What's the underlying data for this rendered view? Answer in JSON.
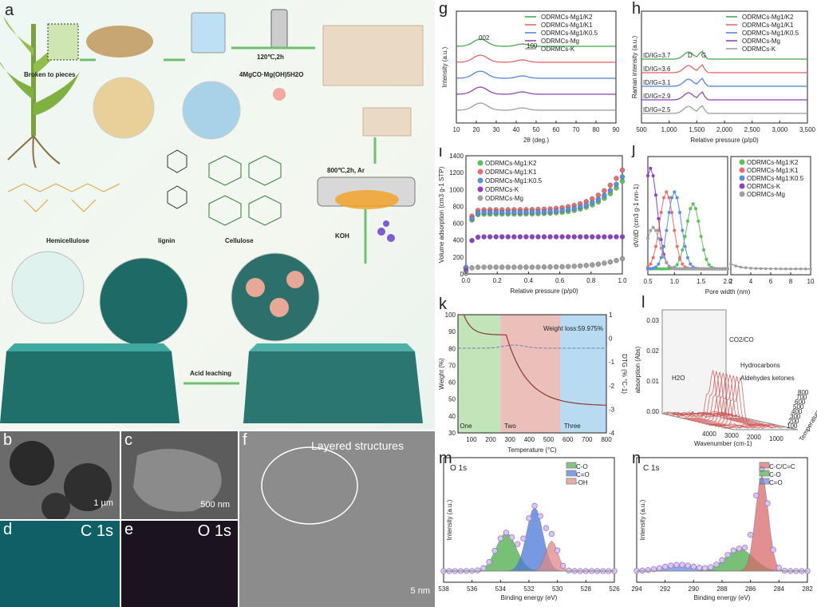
{
  "panels": {
    "a": "a",
    "b": "b",
    "c": "c",
    "d": "d",
    "e": "e",
    "f": "f",
    "g": "g",
    "h": "h",
    "i": "i",
    "j": "j",
    "k": "k",
    "l": "l",
    "m": "m",
    "n": "n"
  },
  "schematic": {
    "broken": "Broken to pieces",
    "hydro_temp": "120℃,2h",
    "hydro_reagent": "4MgCO·Mg(OH)5H2O",
    "pyrolysis": "800℃,2h, Ar",
    "koh": "KOH",
    "acid": "Acid leaching",
    "hemicellulose": "Hemicellulose",
    "lignin": "lignin",
    "cellulose": "Cellulose"
  },
  "micro": {
    "b_scale": "1 µm",
    "c_scale": "500 nm",
    "d_label": "C 1s",
    "e_label": "O 1s",
    "f_label": "Layered structures",
    "f_scale": "5 nm"
  },
  "chart_g": {
    "type": "line",
    "xlabel": "2θ (deg.)",
    "ylabel": "Intensity (a.u.)",
    "xlim": [
      10,
      90
    ],
    "xticks": [
      "10",
      "20",
      "30",
      "40",
      "50",
      "60",
      "70",
      "80",
      "90"
    ],
    "annotations": [
      "002",
      "100"
    ],
    "series": [
      {
        "name": "ODRMCs-Mg1/K2",
        "color": "#3aa64a",
        "offset": 4
      },
      {
        "name": "ODRMCs-Mg1/K1",
        "color": "#e06060",
        "offset": 3
      },
      {
        "name": "ODRMCs-Mg1/K0.5",
        "color": "#4a7fd8",
        "offset": 2
      },
      {
        "name": "ODRMCs-Mg",
        "color": "#8a3fb0",
        "offset": 1
      },
      {
        "name": "ODRMCs-K",
        "color": "#999999",
        "offset": 0
      }
    ]
  },
  "chart_h": {
    "type": "line",
    "xlabel": "Relative pressure (p/p0)",
    "ylabel": "Raman intensity (a.u.)",
    "xlim": [
      500,
      3500
    ],
    "xticks": [
      "500",
      "1,000",
      "1,500",
      "2,000",
      "2,500",
      "3,000",
      "3,500"
    ],
    "peaks": [
      "D",
      "G"
    ],
    "ratios": [
      "ID/IG=3.7",
      "ID/IG=3.6",
      "ID/IG=3.1",
      "ID/IG=2.9",
      "ID/IG=2.5"
    ],
    "series": [
      {
        "name": "ODRMCs-Mg1/K2",
        "color": "#3aa64a"
      },
      {
        "name": "ODRMCs-Mg1/K1",
        "color": "#e06060"
      },
      {
        "name": "ODRMCs-Mg1/K0.5",
        "color": "#4a7fd8"
      },
      {
        "name": "ODRMCs-Mg",
        "color": "#8a3fb0"
      },
      {
        "name": "ODRMCs-K",
        "color": "#999999"
      }
    ]
  },
  "chart_i": {
    "type": "scatter",
    "xlabel": "Relative pressure (p/p0)",
    "ylabel": "Volume adsorption (cm3 g-1 STP)",
    "xlim": [
      0,
      1
    ],
    "ylim": [
      0,
      1400
    ],
    "xticks": [
      "0.0",
      "0.2",
      "0.4",
      "0.6",
      "0.8",
      "1.0"
    ],
    "yticks": [
      "0",
      "200",
      "400",
      "600",
      "800",
      "1000",
      "1200",
      "1400"
    ],
    "series": [
      {
        "name": "ODRMCs-Mg1:K2",
        "color": "#5cc05c",
        "plateau": 710,
        "end": 1100
      },
      {
        "name": "ODRMCs-Mg1:K1",
        "color": "#e87070",
        "plateau": 760,
        "end": 1230
      },
      {
        "name": "ODRMCs-Mg1:K0.5",
        "color": "#5a8fe0",
        "plateau": 730,
        "end": 1150
      },
      {
        "name": "ODRMCs-K",
        "color": "#9040c0",
        "plateau": 440,
        "end": 440
      },
      {
        "name": "ODRMCs-Mg",
        "color": "#a0a0a0",
        "plateau": 80,
        "end": 180
      }
    ]
  },
  "chart_j": {
    "type": "line",
    "xlabel": "Pore width (nm)",
    "ylabel": "dV/dD (cm3 g-1 nm-1)",
    "xticks_left": [
      "0.5",
      "1.0",
      "1.5",
      "2.0"
    ],
    "xticks_right": [
      "2",
      "4",
      "6",
      "8",
      "10"
    ],
    "series": [
      {
        "name": "ODRMCs-Mg1:K2",
        "color": "#5cc05c"
      },
      {
        "name": "ODRMCs-Mg1:K1",
        "color": "#e87070"
      },
      {
        "name": "ODRMCs-Mg1:K0.5",
        "color": "#5a8fe0"
      },
      {
        "name": "ODRMCs-K",
        "color": "#9040c0"
      },
      {
        "name": "ODRMCs-Mg",
        "color": "#a0a0a0"
      }
    ]
  },
  "chart_k": {
    "type": "line",
    "xlabel": "Temperature (°C)",
    "ylabel": "Weight (%)",
    "ylabel2": "DTG (% °C-1)",
    "xticks": [
      "100",
      "200",
      "300",
      "400",
      "500",
      "600",
      "700",
      "800"
    ],
    "yticks": [
      "30",
      "40",
      "50",
      "60",
      "70",
      "80",
      "90",
      "100"
    ],
    "yticks2": [
      "1",
      "0",
      "-1",
      "-2",
      "-3",
      "-4"
    ],
    "note": "Weight loss:59.975%",
    "stages": [
      "One",
      "Two",
      "Three"
    ]
  },
  "chart_l": {
    "type": "area",
    "zlabel": "absorption (Abs)",
    "xlabel": "Wavenumber (cm-1)",
    "ylabel": "Temperature (°C)",
    "zticks": [
      "0.00",
      "0.01",
      "0.02",
      "0.03"
    ],
    "annotations": [
      "CO2/CO",
      "Hydrocarbons",
      "Aldehydes ketones",
      "H2O"
    ],
    "xticks": [
      "4000",
      "3000",
      "2000",
      "1000"
    ],
    "yticks": [
      "100",
      "200",
      "300",
      "400",
      "500",
      "600",
      "700",
      "800"
    ]
  },
  "chart_m": {
    "type": "area",
    "title": "O 1s",
    "xlabel": "Binding energy (eV)",
    "ylabel": "Intensity (a.u.)",
    "xticks": [
      "538",
      "536",
      "534",
      "532",
      "530",
      "528",
      "526"
    ],
    "legend": [
      {
        "name": "C-O",
        "color": "#4caa4c"
      },
      {
        "name": "C=O",
        "color": "#4a78d8"
      },
      {
        "name": "-OH",
        "color": "#e08888"
      }
    ]
  },
  "chart_n": {
    "type": "area",
    "title": "C 1s",
    "xlabel": "Binding energy (eV)",
    "ylabel": "Intensity (a.u.)",
    "xticks": [
      "294",
      "292",
      "290",
      "288",
      "286",
      "284",
      "282"
    ],
    "legend": [
      {
        "name": "C-C/C=C",
        "color": "#d86a6a"
      },
      {
        "name": "C-O",
        "color": "#4caa4c"
      },
      {
        "name": "C=O",
        "color": "#6a8ae0"
      }
    ]
  }
}
